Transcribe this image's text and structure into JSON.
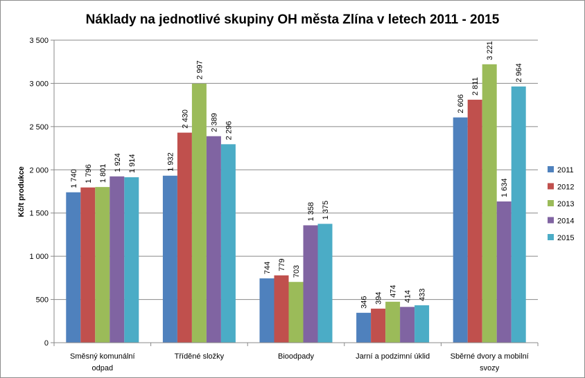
{
  "chart_data": {
    "type": "bar",
    "title": "Náklady na jednotlivé skupiny OH města Zlína v letech 2011 - 2015",
    "xlabel": "",
    "ylabel": "Kč/t produkce",
    "ylim": [
      0,
      3500
    ],
    "yticks": [
      "0",
      "500",
      "1 000",
      "1 500",
      "2 000",
      "2 500",
      "3 000",
      "3 500"
    ],
    "grid": true,
    "legend_position": "right",
    "categories": [
      [
        "Směsný komunální",
        "odpad"
      ],
      [
        "Tříděné složky"
      ],
      [
        "Bioodpady"
      ],
      [
        "Jarní a podzimní úklid"
      ],
      [
        "Sběrné dvory a mobilní",
        "svozy"
      ]
    ],
    "series": [
      {
        "name": "2011",
        "color": "#4F81BD",
        "values": [
          1740,
          1932,
          744,
          346,
          2606
        ],
        "labels": [
          "1 740",
          "1 932",
          "744",
          "346",
          "2 606"
        ]
      },
      {
        "name": "2012",
        "color": "#C0504D",
        "values": [
          1796,
          2430,
          779,
          394,
          2811
        ],
        "labels": [
          "1 796",
          "2 430",
          "779",
          "394",
          "2 811"
        ]
      },
      {
        "name": "2013",
        "color": "#9BBB59",
        "values": [
          1801,
          2997,
          703,
          474,
          3221
        ],
        "labels": [
          "1 801",
          "2 997",
          "703",
          "474",
          "3 221"
        ]
      },
      {
        "name": "2014",
        "color": "#8064A2",
        "values": [
          1924,
          2389,
          1358,
          414,
          1634
        ],
        "labels": [
          "1 924",
          "2 389",
          "1 358",
          "414",
          "1 634"
        ]
      },
      {
        "name": "2015",
        "color": "#4BACC6",
        "values": [
          1914,
          2296,
          1375,
          433,
          2964
        ],
        "labels": [
          "1 914",
          "2 296",
          "1 375",
          "433",
          "2 964"
        ]
      }
    ]
  }
}
